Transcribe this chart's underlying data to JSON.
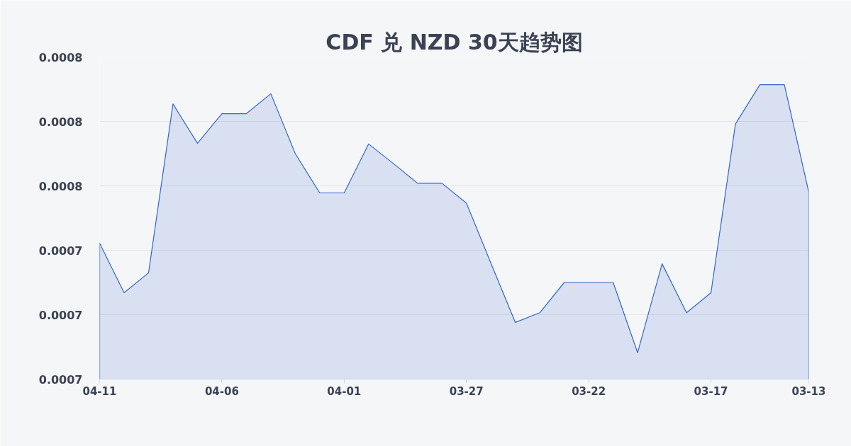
{
  "chart_data": {
    "type": "area",
    "title": "CDF 兑 NZD 30天趋势图",
    "categories": [
      "04-11",
      null,
      null,
      null,
      null,
      "04-06",
      null,
      null,
      null,
      null,
      "04-01",
      null,
      null,
      null,
      null,
      "03-27",
      null,
      null,
      null,
      null,
      "03-22",
      null,
      null,
      null,
      null,
      "03-17",
      null,
      null,
      null,
      "03-13"
    ],
    "series": [
      {
        "color": "#3366cc",
        "values": [
          0.0007461,
          0.0007384,
          0.0007415,
          0.0007677,
          0.0007616,
          0.0007662,
          0.0007662,
          0.0007693,
          0.00076,
          0.0007539,
          0.0007539,
          0.0007615,
          0.0007585,
          0.0007554,
          0.0007554,
          0.0007523,
          0.000743,
          0.0007338,
          0.0007353,
          0.00074,
          0.00074,
          0.00074,
          0.0007291,
          0.0007429,
          0.0007353,
          0.0007384,
          0.0007646,
          0.0007707,
          0.0007707,
          0.000754
        ]
      }
    ],
    "ylim": [
      0.000725,
      0.000775
    ],
    "yticks": [
      {
        "value": 0.000725,
        "label": "0.0007"
      },
      {
        "value": 0.000735,
        "label": "0.0007"
      },
      {
        "value": 0.000745,
        "label": "0.0007"
      },
      {
        "value": 0.000755,
        "label": "0.0008"
      },
      {
        "value": 0.000765,
        "label": "0.0008"
      },
      {
        "value": 0.000775,
        "label": "0.0008"
      }
    ],
    "grid": "y"
  }
}
